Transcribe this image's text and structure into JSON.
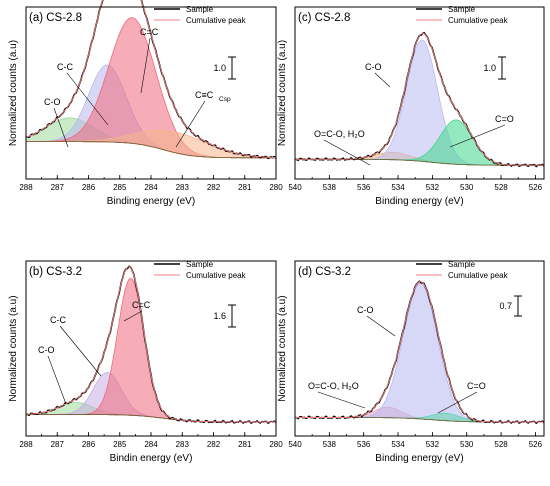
{
  "panels": [
    {
      "id": "a",
      "title": "(a) CS-2.8",
      "xlabel": "Binding energy (eV)",
      "ylabel": "Normalized counts (a.u)",
      "xticks": [
        "288",
        "287",
        "286",
        "285",
        "284",
        "283",
        "282",
        "281",
        "280"
      ],
      "legend": [
        "Sample",
        "Cumulative peak"
      ],
      "scale_label": "1.0",
      "annotations": [
        "C-O",
        "C-C",
        "C=C",
        "C≡C",
        "Csp"
      ]
    },
    {
      "id": "c",
      "title": "(c) CS-2.8",
      "xlabel": "Binding energy (eV)",
      "ylabel": "Normalized counts (a.u)",
      "xticks": [
        "540",
        "538",
        "536",
        "534",
        "532",
        "530",
        "528",
        "526"
      ],
      "legend": [
        "Sample",
        "Cumulative peak"
      ],
      "scale_label": "1.0",
      "annotations": [
        "C-O",
        "O=C-O, H₂O",
        "C=O"
      ]
    },
    {
      "id": "b",
      "title": "(b) CS-3.2",
      "xlabel": "Bindin energy (eV)",
      "ylabel": "Normalized counts (a.u)",
      "xticks": [
        "288",
        "287",
        "286",
        "285",
        "284",
        "283",
        "282",
        "281",
        "280"
      ],
      "legend": [
        "Sample",
        "Cumulative peak"
      ],
      "scale_label": "1.6",
      "annotations": [
        "C-O",
        "C-C",
        "C=C"
      ]
    },
    {
      "id": "d",
      "title": "(d) CS-3.2",
      "xlabel": "Binding energy (eV)",
      "ylabel": "Normalized counts (a.u)",
      "xticks": [
        "540",
        "538",
        "536",
        "534",
        "532",
        "530",
        "528",
        "526"
      ],
      "legend": [
        "Sample",
        "Cumulative peak"
      ],
      "scale_label": "0.7",
      "annotations": [
        "C-O",
        "O=C-O, H₂O",
        "C=O"
      ]
    }
  ],
  "chart_data": [
    {
      "type": "area",
      "panel": "a",
      "title": "(a) CS-2.8",
      "xlabel": "Binding energy (eV)",
      "ylabel": "Normalized counts (a.u)",
      "xlim": [
        288,
        280
      ],
      "x_reversed": true,
      "background": {
        "left": 0.16,
        "right": 0.05
      },
      "series": [
        {
          "name": "C-O",
          "center": 286.6,
          "sigma": 0.75,
          "amp": 0.16,
          "color": "#9fd89a"
        },
        {
          "name": "C-C",
          "center": 285.4,
          "sigma": 0.6,
          "amp": 0.52,
          "color": "#b9b6ee"
        },
        {
          "name": "C=C",
          "center": 284.6,
          "sigma": 0.75,
          "amp": 0.85,
          "color": "#f0697b"
        },
        {
          "name": "C≡C Csp",
          "center": 283.2,
          "sigma": 1.1,
          "amp": 0.14,
          "color": "#f6b58a"
        }
      ],
      "legend": [
        "Sample",
        "Cumulative peak"
      ]
    },
    {
      "type": "area",
      "panel": "c",
      "title": "(c) CS-2.8",
      "xlabel": "Binding energy (eV)",
      "ylabel": "Normalized counts (a.u)",
      "xlim": [
        540,
        525.5
      ],
      "x_reversed": true,
      "background": {
        "left": 0.04,
        "right": 0.0
      },
      "series": [
        {
          "name": "O=C-O, H₂O",
          "center": 534.3,
          "sigma": 1.0,
          "amp": 0.05,
          "color": "#f2b07a"
        },
        {
          "name": "C-O",
          "center": 532.6,
          "sigma": 0.9,
          "amp": 0.82,
          "color": "#b9bcf1"
        },
        {
          "name": "C=O",
          "center": 530.6,
          "sigma": 0.95,
          "amp": 0.3,
          "color": "#3ed78a"
        }
      ],
      "legend": [
        "Sample",
        "Cumulative peak"
      ]
    },
    {
      "type": "area",
      "panel": "b",
      "title": "(b) CS-3.2",
      "xlabel": "Bindin energy (eV)",
      "ylabel": "Normalized counts (a.u)",
      "xlim": [
        288,
        280
      ],
      "x_reversed": true,
      "background": {
        "left": 0.05,
        "right": 0.0
      },
      "series": [
        {
          "name": "C-O",
          "center": 286.4,
          "sigma": 0.55,
          "amp": 0.08,
          "color": "#9fd89a"
        },
        {
          "name": "C-C",
          "center": 285.4,
          "sigma": 0.45,
          "amp": 0.28,
          "color": "#c7aee3"
        },
        {
          "name": "C=C",
          "center": 284.65,
          "sigma": 0.42,
          "amp": 0.91,
          "color": "#f0697b"
        }
      ],
      "legend": [
        "Sample",
        "Cumulative peak"
      ]
    },
    {
      "type": "area",
      "panel": "d",
      "title": "(d) CS-3.2",
      "xlabel": "Binding energy (eV)",
      "ylabel": "Normalized counts (a.u)",
      "xlim": [
        540,
        525.5
      ],
      "x_reversed": true,
      "background": {
        "left": 0.03,
        "right": 0.0
      },
      "series": [
        {
          "name": "O=C-O, H₂O",
          "center": 534.6,
          "sigma": 0.8,
          "amp": 0.07,
          "color": "#e9a7c4"
        },
        {
          "name": "C-O",
          "center": 532.7,
          "sigma": 1.0,
          "amp": 0.9,
          "color": "#b6b8f1"
        },
        {
          "name": "C=O",
          "center": 531.2,
          "sigma": 0.8,
          "amp": 0.05,
          "color": "#5cd6a8"
        }
      ],
      "legend": [
        "Sample",
        "Cumulative peak"
      ]
    }
  ]
}
